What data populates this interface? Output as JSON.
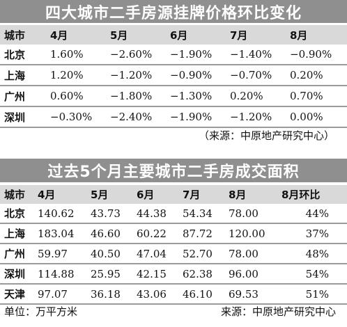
{
  "table1": {
    "title": "四大城市二手房源挂牌价格环比变化",
    "headers": [
      "城市",
      "4月",
      "5月",
      "6月",
      "7月",
      "8月"
    ],
    "rows": [
      {
        "city": "北京",
        "values": [
          "1.60%",
          "−2.60%",
          "−1.90%",
          "−1.40%",
          "−0.90%"
        ]
      },
      {
        "city": "上海",
        "values": [
          "1.20%",
          "−1.20%",
          "−0.90%",
          "−0.70%",
          "0.20%"
        ]
      },
      {
        "city": "广州",
        "values": [
          "0.60%",
          "−1.80%",
          "−1.30%",
          "0.20%",
          "0.70%"
        ]
      },
      {
        "city": "深圳",
        "values": [
          "−0.30%",
          "−2.40%",
          "−1.90%",
          "−1.20%",
          "0.00%"
        ]
      }
    ],
    "source": "（来源：中原地产研究中心）"
  },
  "table2": {
    "title": "过去5个月主要城市二手房成交面积",
    "headers": [
      "城市",
      "4月",
      "5月",
      "6月",
      "7月",
      "8月",
      "8月环比"
    ],
    "rows": [
      {
        "city": "北京",
        "values": [
          "140.62",
          "43.73",
          "44.38",
          "54.34",
          "78.00",
          "44%"
        ]
      },
      {
        "city": "上海",
        "values": [
          "183.04",
          "46.60",
          "60.22",
          "87.72",
          "120.00",
          "37%"
        ]
      },
      {
        "city": "广州",
        "values": [
          "59.97",
          "40.50",
          "47.04",
          "52.70",
          "78.00",
          "48%"
        ]
      },
      {
        "city": "深圳",
        "values": [
          "114.88",
          "25.95",
          "42.15",
          "62.38",
          "96.00",
          "54%"
        ]
      },
      {
        "city": "天津",
        "values": [
          "97.07",
          "36.18",
          "43.06",
          "46.10",
          "69.53",
          "51%"
        ]
      }
    ],
    "unit": "单位：万平方米",
    "source": "来源：中原地产研究中心"
  }
}
